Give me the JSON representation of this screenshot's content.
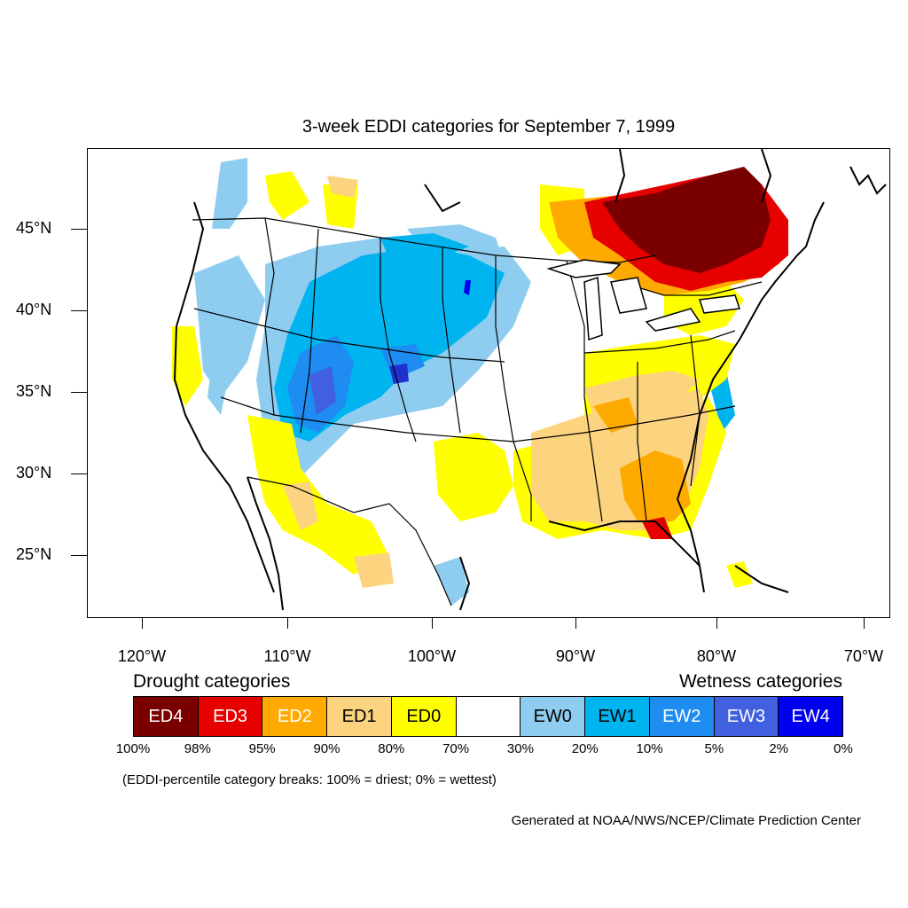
{
  "title": "3-week EDDI categories for September 7, 1999",
  "lat_labels": [
    "45°N",
    "40°N",
    "35°N",
    "30°N",
    "25°N"
  ],
  "lon_labels": [
    "120°W",
    "110°W",
    "100°W",
    "90°W",
    "80°W",
    "70°W"
  ],
  "legend": {
    "drought_heading": "Drought categories",
    "wetness_heading": "Wetness categories",
    "categories": [
      {
        "label": "ED4",
        "color": "#7a0000",
        "text_color": "#ffffff"
      },
      {
        "label": "ED3",
        "color": "#e60000",
        "text_color": "#ffffff"
      },
      {
        "label": "ED2",
        "color": "#ffaa00",
        "text_color": "#ffffff"
      },
      {
        "label": "ED1",
        "color": "#fcd37f",
        "text_color": "#000000"
      },
      {
        "label": "ED0",
        "color": "#ffff00",
        "text_color": "#000000"
      },
      {
        "label": "",
        "color": "#ffffff",
        "text_color": "#000000"
      },
      {
        "label": "EW0",
        "color": "#8ecdf0",
        "text_color": "#000000"
      },
      {
        "label": "EW1",
        "color": "#00b4f0",
        "text_color": "#000000"
      },
      {
        "label": "EW2",
        "color": "#1e8cf0",
        "text_color": "#ffffff"
      },
      {
        "label": "EW3",
        "color": "#4060e0",
        "text_color": "#ffffff"
      },
      {
        "label": "EW4",
        "color": "#0000f0",
        "text_color": "#ffffff"
      }
    ],
    "percentiles": [
      "100%",
      "98%",
      "95%",
      "90%",
      "80%",
      "70%",
      "30%",
      "20%",
      "10%",
      "5%",
      "2%",
      "0%"
    ]
  },
  "note": "(EDDI-percentile category breaks: 100% = driest; 0% = wettest)",
  "credit": "Generated at NOAA/NWS/NCEP/Climate Prediction Center"
}
